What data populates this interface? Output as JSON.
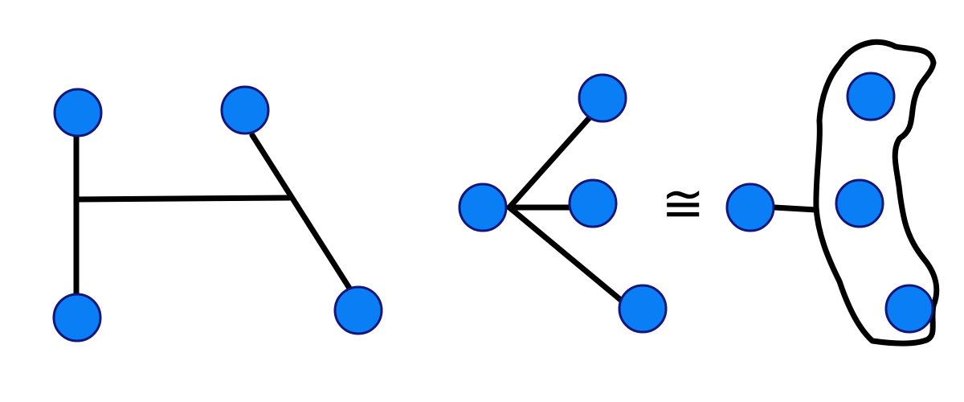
{
  "colors": {
    "node_fill": "#0a7ff5",
    "node_stroke": "#14167a",
    "edge": "#000000",
    "background": "#ffffff"
  },
  "relation_symbol": "≅",
  "figures": [
    {
      "name": "tree-h",
      "nodes": [
        "top-left",
        "top-right",
        "bottom-left",
        "bottom-right"
      ],
      "edges": [
        [
          "top-left",
          "bottom-left"
        ],
        [
          "branch-left",
          "branch-right"
        ],
        [
          "top-right",
          "bottom-right"
        ]
      ]
    },
    {
      "name": "star",
      "nodes": [
        "center",
        "upper-leaf",
        "middle-leaf",
        "lower-leaf"
      ],
      "edges": [
        [
          "center",
          "upper-leaf"
        ],
        [
          "center",
          "middle-leaf"
        ],
        [
          "center",
          "lower-leaf"
        ]
      ]
    },
    {
      "name": "contracted-star",
      "nodes": [
        "root",
        "grouped-top",
        "grouped-middle",
        "grouped-bottom"
      ],
      "edges": [
        [
          "root",
          "group-boundary"
        ]
      ],
      "grouped": [
        "grouped-top",
        "grouped-middle",
        "grouped-bottom"
      ]
    }
  ]
}
